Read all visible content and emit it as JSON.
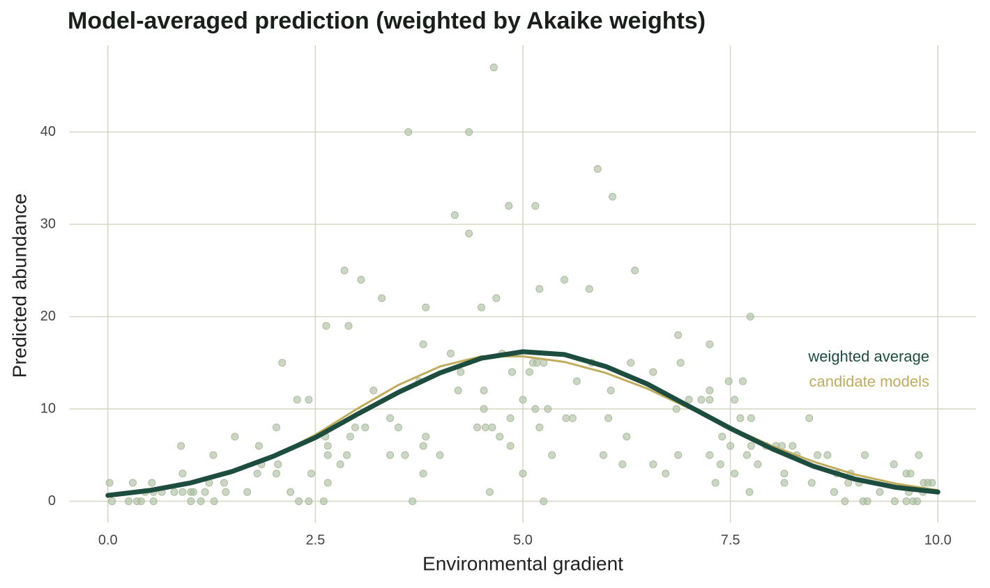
{
  "chart_data": {
    "type": "scatter",
    "title": "Model-averaged prediction (weighted by Akaike weights)",
    "x_label": "Environmental gradient",
    "y_label": "Predicted abundance",
    "xlim": [
      -0.46,
      10.46
    ],
    "ylim": [
      -2.3,
      49.4
    ],
    "xticks": [
      {
        "value": 0,
        "label": "0.0"
      },
      2.5,
      {
        "value": 5,
        "label": "5.0"
      },
      7.5,
      {
        "value": 10,
        "label": "10.0"
      }
    ],
    "yticks": [
      0,
      10,
      20,
      30,
      40
    ],
    "grid": true,
    "grid_color": "#d3d7c3",
    "points": {
      "color": "#a9bc9c",
      "x": [
        0.02,
        0.05,
        0.3,
        0.25,
        0.35,
        0.4,
        0.45,
        0.55,
        0.53,
        0.55,
        0.65,
        0.8,
        0.88,
        0.9,
        0.9,
        1.0,
        1.03,
        1.0,
        1.12,
        1.17,
        1.22,
        1.27,
        1.28,
        1.4,
        1.42,
        1.53,
        1.68,
        1.8,
        1.82,
        1.85,
        2.03,
        2.03,
        2.05,
        2.1,
        2.2,
        2.28,
        2.3,
        2.42,
        2.42,
        2.45,
        2.6,
        2.63,
        2.65,
        2.65,
        2.65,
        2.62,
        2.8,
        2.85,
        2.88,
        2.9,
        2.92,
        2.98,
        3.05,
        3.1,
        3.2,
        3.3,
        3.4,
        3.4,
        3.5,
        3.58,
        3.62,
        3.67,
        3.75,
        3.8,
        3.8,
        3.8,
        3.83,
        3.83,
        4.0,
        4.13,
        4.18,
        4.22,
        4.25,
        4.35,
        4.35,
        4.45,
        4.5,
        4.53,
        4.53,
        4.55,
        4.6,
        4.63,
        4.65,
        4.68,
        4.72,
        4.75,
        4.83,
        4.85,
        4.85,
        4.87,
        5.0,
        5.0,
        5.08,
        5.12,
        5.15,
        5.15,
        5.17,
        5.2,
        5.2,
        5.25,
        5.25,
        5.3,
        5.35,
        5.5,
        5.52,
        5.6,
        5.65,
        5.8,
        5.83,
        5.9,
        5.97,
        6.03,
        6.06,
        6.08,
        6.2,
        6.25,
        6.3,
        6.35,
        6.57,
        6.57,
        6.72,
        6.85,
        6.87,
        6.87,
        6.9,
        7.0,
        7.15,
        7.25,
        7.25,
        7.25,
        7.25,
        7.32,
        7.38,
        7.4,
        7.48,
        7.5,
        7.55,
        7.55,
        7.62,
        7.65,
        7.7,
        7.73,
        7.74,
        7.75,
        7.75,
        7.83,
        7.93,
        8.05,
        8.12,
        8.15,
        8.15,
        8.25,
        8.3,
        8.45,
        8.48,
        8.55,
        8.67,
        8.75,
        8.78,
        8.88,
        8.92,
        8.95,
        9.05,
        9.1,
        9.12,
        9.15,
        9.3,
        9.47,
        9.48,
        9.62,
        9.62,
        9.65,
        9.67,
        9.7,
        9.75,
        9.77,
        9.82,
        9.83,
        9.88,
        9.93
      ],
      "y": [
        2,
        0,
        2,
        0,
        0,
        0,
        1,
        1,
        2,
        0,
        1,
        1,
        6,
        3,
        1,
        1,
        1,
        0,
        0,
        1,
        2,
        5,
        0,
        2,
        1,
        7,
        1,
        3,
        6,
        4,
        8,
        3,
        4,
        15,
        1,
        11,
        0,
        11,
        0,
        3,
        0,
        19,
        6,
        5,
        2,
        7,
        4,
        25,
        5,
        19,
        7,
        8,
        24,
        8,
        12,
        22,
        9,
        5,
        8,
        5,
        40,
        0,
        13,
        17,
        6,
        3,
        21,
        7,
        5,
        16,
        31,
        12,
        14,
        40,
        29,
        8,
        21,
        12,
        10,
        8,
        1,
        8,
        47,
        22,
        7,
        16,
        32,
        9,
        6,
        14,
        11,
        3,
        14,
        15,
        10,
        32,
        15,
        8,
        23,
        15,
        0,
        10,
        5,
        24,
        9,
        9,
        13,
        23,
        15,
        36,
        5,
        9,
        12,
        33,
        4,
        7,
        15,
        25,
        14,
        4,
        3,
        10,
        5,
        18,
        15,
        11,
        11,
        17,
        12,
        11,
        5,
        2,
        4,
        7,
        13,
        6,
        11,
        3,
        9,
        13,
        5,
        1,
        20,
        6,
        9,
        4,
        6,
        6,
        6,
        2,
        3,
        6,
        5,
        9,
        2,
        5,
        5,
        1,
        3,
        0,
        2,
        3,
        2,
        0,
        5,
        0,
        1,
        4,
        0,
        0,
        3,
        1,
        3,
        0,
        0,
        5,
        1,
        2,
        2,
        2
      ]
    },
    "x": [
      0,
      0.5,
      1,
      1.5,
      2,
      2.5,
      3,
      3.5,
      4,
      4.5,
      5,
      5.5,
      6,
      6.5,
      7,
      7.5,
      8,
      8.5,
      9,
      9.5,
      10
    ],
    "series": [
      {
        "name": "candidate models",
        "color": "#c0ac5c",
        "width": 3,
        "values": [
          0.7,
          1.2,
          2.0,
          3.2,
          4.9,
          7.2,
          10.0,
          12.6,
          14.6,
          15.7,
          15.7,
          15.1,
          13.9,
          12.2,
          10.1,
          8.0,
          6.0,
          4.3,
          2.9,
          1.9,
          1.2
        ]
      },
      {
        "name": "weighted average",
        "color": "#1c4d3e",
        "width": 7,
        "values": [
          0.64,
          1.17,
          2.0,
          3.24,
          4.9,
          6.9,
          9.4,
          11.8,
          13.9,
          15.5,
          16.2,
          15.9,
          14.6,
          12.7,
          10.3,
          7.9,
          5.7,
          3.8,
          2.4,
          1.5,
          1.0
        ]
      }
    ]
  }
}
